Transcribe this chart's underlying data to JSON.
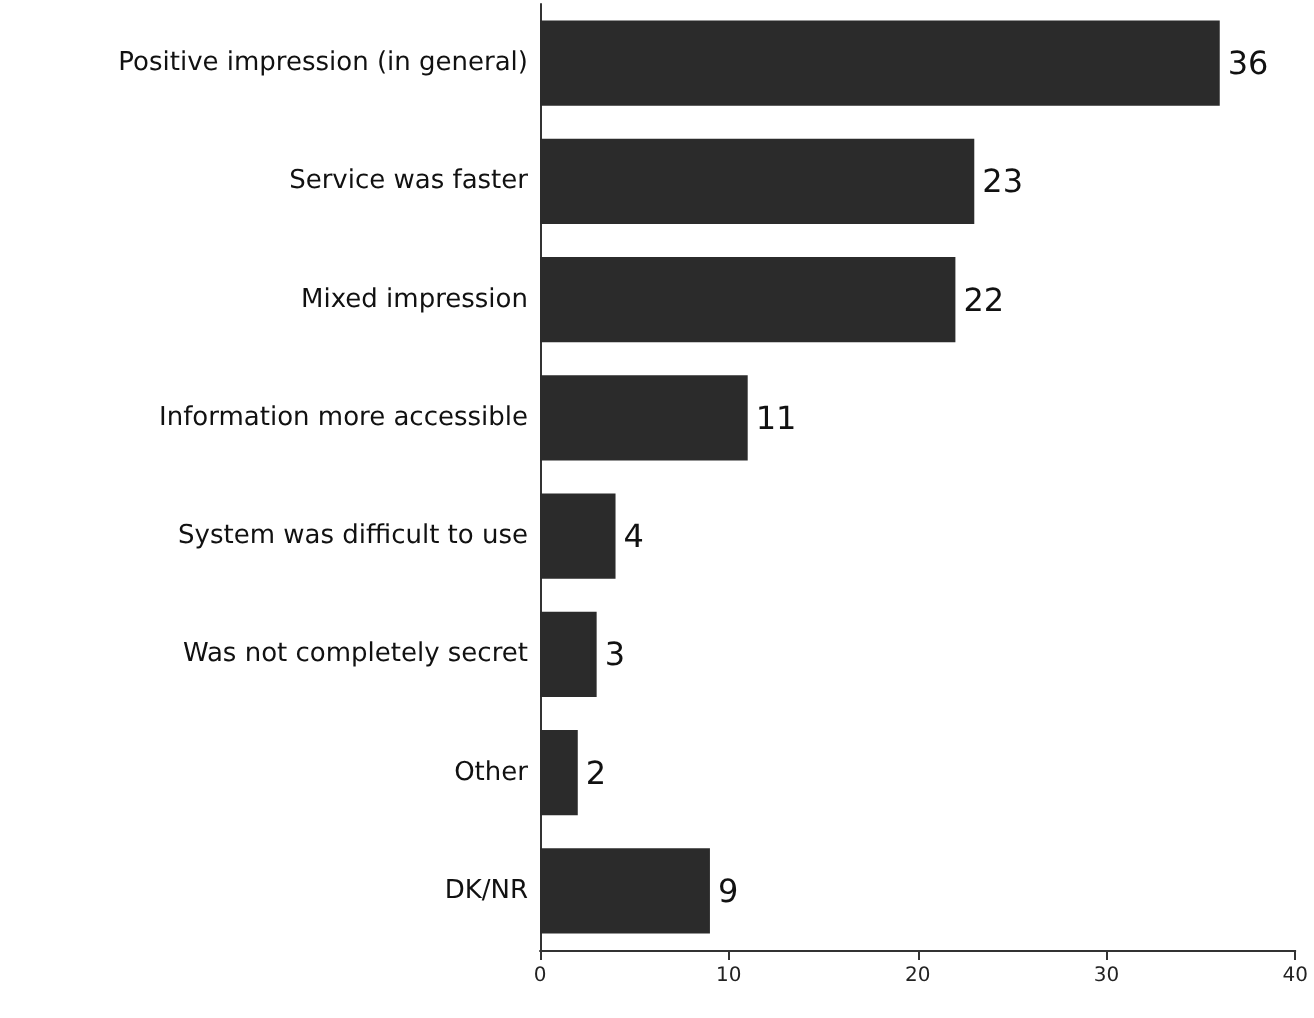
{
  "chart_data": {
    "type": "bar",
    "orientation": "horizontal",
    "categories": [
      "Positive impression (in general)",
      "Service was faster",
      "Mixed impression",
      "Information more accessible",
      "System was difficult to use",
      "Was not completely secret",
      "Other",
      "DK/NR"
    ],
    "values": [
      36,
      23,
      22,
      11,
      4,
      3,
      2,
      9
    ],
    "color": "#2b2b2b",
    "xlim": [
      0,
      40
    ],
    "xticks": [
      0,
      10,
      20,
      30,
      40
    ],
    "data_labels": true,
    "grid": false
  }
}
